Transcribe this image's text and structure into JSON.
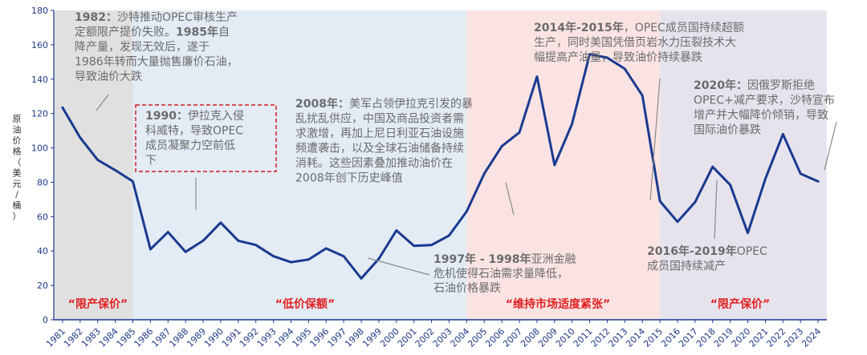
{
  "chart_data": {
    "type": "line",
    "ylabel": "原油价格（美元/桶）",
    "ylim": [
      0,
      180
    ],
    "yticks": [
      0,
      20,
      40,
      60,
      80,
      100,
      120,
      140,
      160,
      180
    ],
    "x": [
      "1981",
      "1982",
      "1983",
      "1984",
      "1985",
      "1986",
      "1987",
      "1988",
      "1989",
      "1990",
      "1991",
      "1992",
      "1993",
      "1994",
      "1995",
      "1996",
      "1997",
      "1998",
      "1999",
      "2000",
      "2001",
      "2002",
      "2003",
      "2004",
      "2005",
      "2006",
      "2007",
      "2008",
      "2009",
      "2010",
      "2011",
      "2012",
      "2013",
      "2014",
      "2015",
      "2016",
      "2017",
      "2018",
      "2019",
      "2020",
      "2021",
      "2022",
      "2023",
      "2024"
    ],
    "series": [
      {
        "color": "#1a3a8f",
        "values": [
          123.5,
          106,
          93,
          87,
          80.5,
          41,
          51,
          39.5,
          46,
          56.5,
          46,
          43.5,
          37,
          33.5,
          35,
          41.5,
          37,
          24,
          35.5,
          52,
          43,
          43.5,
          49,
          63,
          85,
          101,
          109,
          141.5,
          90,
          114,
          154.5,
          152.5,
          146,
          130.5,
          69,
          57,
          68.5,
          89,
          78.5,
          50.5,
          82,
          108,
          85,
          80.5
        ]
      }
    ],
    "phases": [
      {
        "label": "“限产保价”",
        "from": "1981",
        "to": "1985",
        "color": "#e0e0e0"
      },
      {
        "label": "“低价保额”",
        "from": "1985",
        "to": "2004",
        "color": "#e3ebf5"
      },
      {
        "label": "“维持市场适度紧张”",
        "from": "2004",
        "to": "2015",
        "color": "#fbe3e3"
      },
      {
        "label": "“限产保价”",
        "from": "2015",
        "to": "2024",
        "color": "#e6e3ed"
      }
    ],
    "annotations": [
      {
        "id": "a1982",
        "lines": [
          [
            [
              "1982：",
              true
            ],
            [
              "沙特推动OPEC审核生产",
              false
            ]
          ],
          [
            [
              "定额限产提价失败。",
              false
            ],
            [
              "1985年",
              true
            ],
            [
              "自",
              false
            ]
          ],
          [
            [
              "降产量，发现无效后，遂于",
              false
            ]
          ],
          [
            [
              "1986年转而大量抛售廉价石油，",
              false
            ]
          ],
          [
            [
              "导致油价大跌",
              false
            ]
          ]
        ]
      },
      {
        "id": "a1990",
        "lines": [
          [
            [
              "1990：",
              true
            ],
            [
              "伊拉克入侵",
              false
            ]
          ],
          [
            [
              "科威特，导致OPEC",
              false
            ]
          ],
          [
            [
              "成员凝聚力空前低",
              false
            ]
          ],
          [
            [
              "下",
              false
            ]
          ]
        ]
      },
      {
        "id": "a2008",
        "lines": [
          [
            [
              "2008年：",
              true
            ],
            [
              "美军占领伊拉克引发的暴",
              false
            ]
          ],
          [
            [
              "乱扰乱供应，中国及商品投资者需",
              false
            ]
          ],
          [
            [
              "求激增，再加上尼日利亚石油设施",
              false
            ]
          ],
          [
            [
              "频遭袭击，以及全球石油储备持续",
              false
            ]
          ],
          [
            [
              "消耗。这些因素叠加推动油价在",
              false
            ]
          ],
          [
            [
              "2008年创下历史峰值",
              false
            ]
          ]
        ]
      },
      {
        "id": "a1997",
        "lines": [
          [
            [
              "1997年 - 1998年",
              true
            ],
            [
              "亚洲金融",
              false
            ]
          ],
          [
            [
              "危机使得石油需求量降低，",
              false
            ]
          ],
          [
            [
              "石油价格暴跌",
              false
            ]
          ]
        ]
      },
      {
        "id": "a2014",
        "lines": [
          [
            [
              "2014年-2015年",
              true
            ],
            [
              "，OPEC成员国持续超额",
              false
            ]
          ],
          [
            [
              "生产，同时美国凭借页岩水力压裂技术大",
              false
            ]
          ],
          [
            [
              "幅提高产油量，导致油价持续暴跌",
              false
            ]
          ]
        ]
      },
      {
        "id": "a2020",
        "lines": [
          [
            [
              "2020年：",
              true
            ],
            [
              "因俄罗斯拒绝",
              false
            ]
          ],
          [
            [
              "OPEC+减产要求，沙特宣布",
              false
            ]
          ],
          [
            [
              "增产并大幅降价倾销，导致",
              false
            ]
          ],
          [
            [
              "国际油价暴跌",
              false
            ]
          ]
        ]
      },
      {
        "id": "a2016",
        "lines": [
          [
            [
              "2016年-2019年",
              true
            ],
            [
              "OPEC",
              false
            ]
          ],
          [
            [
              "成员国持续减产",
              false
            ]
          ]
        ]
      }
    ]
  }
}
